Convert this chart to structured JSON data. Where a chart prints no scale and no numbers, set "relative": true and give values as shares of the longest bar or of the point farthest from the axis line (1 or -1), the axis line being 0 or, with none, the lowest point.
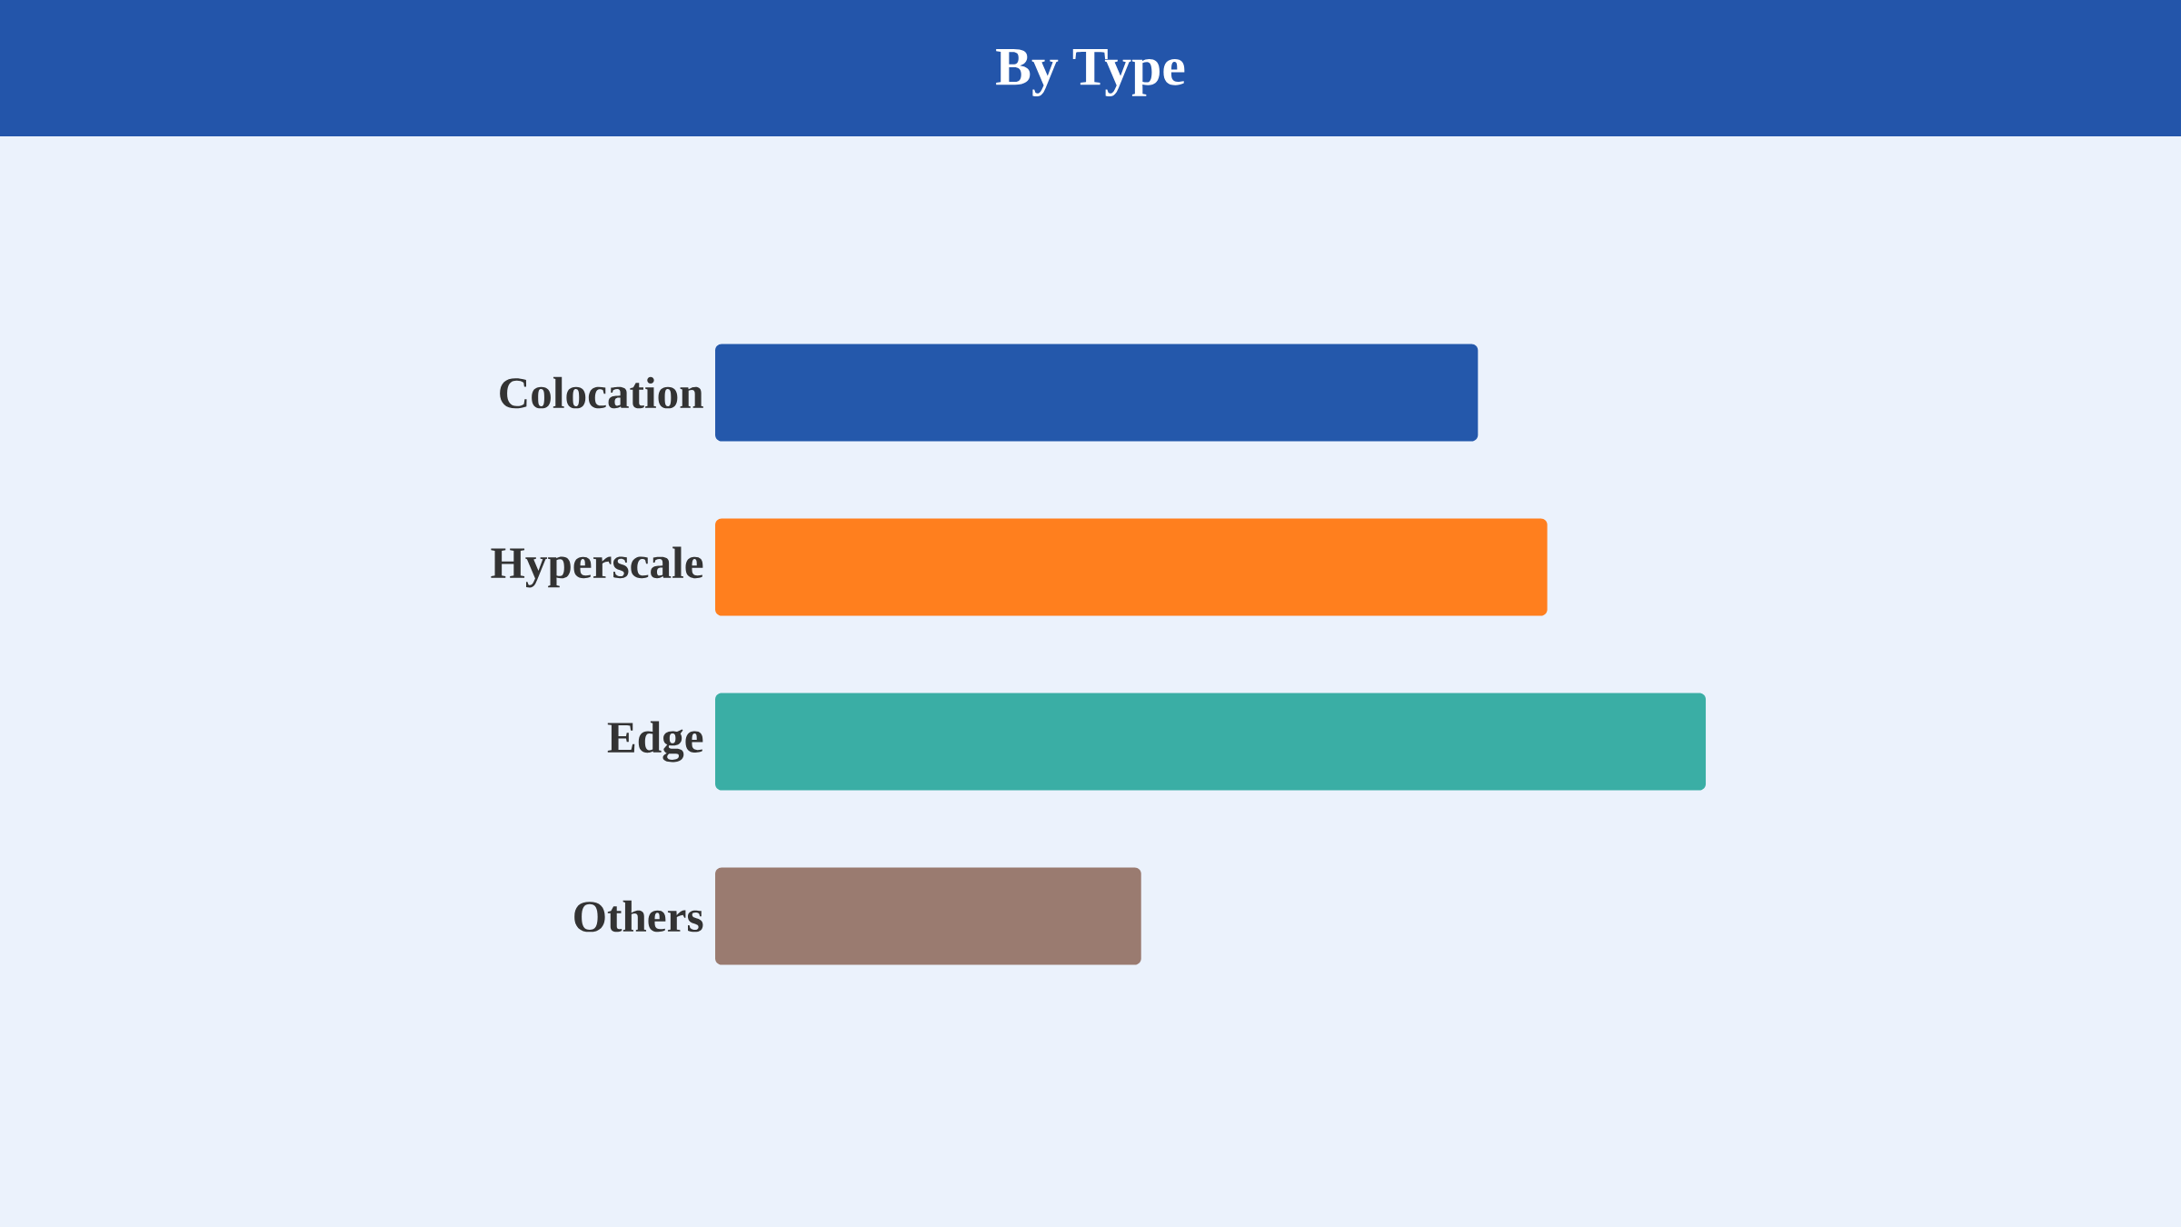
{
  "chart_data": {
    "type": "bar",
    "title": "By Type",
    "orientation": "horizontal",
    "relative": true,
    "categories": [
      "Colocation",
      "Hyperscale",
      "Edge",
      "Others"
    ],
    "values": [
      0.77,
      0.84,
      1,
      0.43
    ],
    "colors": [
      "#2458ab",
      "#ff7f1e",
      "#3aaea5",
      "#9a7b70"
    ]
  }
}
